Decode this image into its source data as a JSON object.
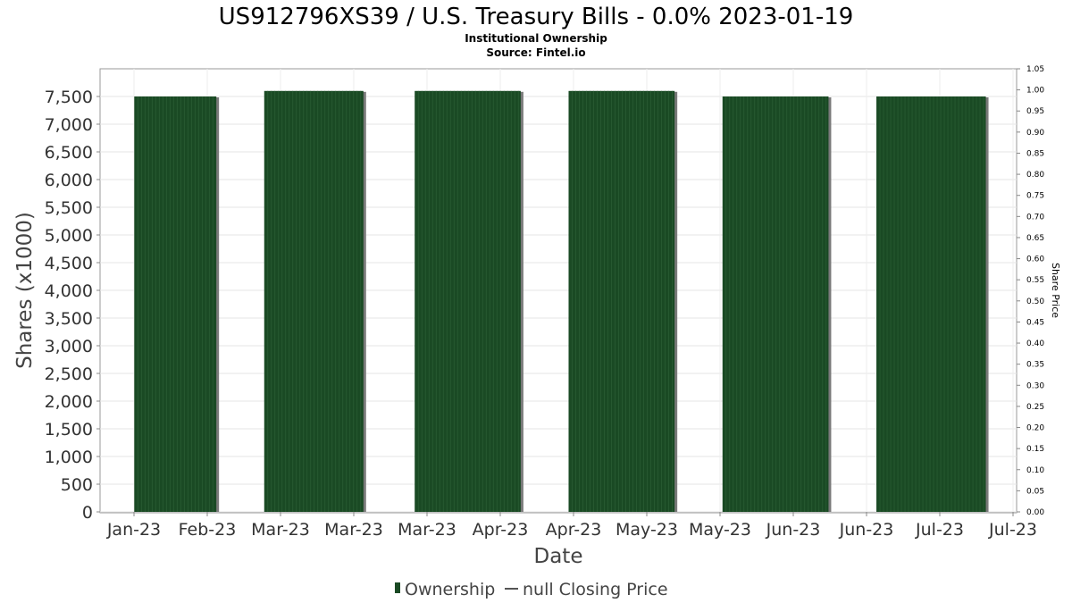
{
  "chart_data": {
    "type": "bar",
    "title": "US912796XS39 / U.S. Treasury Bills - 0.0% 2023-01-19",
    "subtitle_lines": [
      "Institutional Ownership",
      "Source: Fintel.io"
    ],
    "xlabel": "Date",
    "ylabel": "Shares (x1000)",
    "y2label": "Share Price",
    "x_tick_labels": [
      "Jan-23",
      "Feb-23",
      "Mar-23",
      "Mar-23",
      "Mar-23",
      "Apr-23",
      "Apr-23",
      "May-23",
      "May-23",
      "Jun-23",
      "Jun-23",
      "Jul-23",
      "Jul-23"
    ],
    "ylim": [
      0,
      8000
    ],
    "y_ticks": [
      0,
      500,
      1000,
      1500,
      2000,
      2500,
      3000,
      3500,
      4000,
      4500,
      5000,
      5500,
      6000,
      6500,
      7000,
      7500
    ],
    "y_tick_labels": [
      "0",
      "500",
      "1,000",
      "1,500",
      "2,000",
      "2,500",
      "3,000",
      "3,500",
      "4,000",
      "4,500",
      "5,000",
      "5,500",
      "6,000",
      "6,500",
      "7,000",
      "7,500"
    ],
    "y2lim": [
      0,
      1.05
    ],
    "y2_tick_labels": [
      "0.00",
      "0.05",
      "0.10",
      "0.15",
      "0.20",
      "0.25",
      "0.30",
      "0.35",
      "0.40",
      "0.45",
      "0.50",
      "0.55",
      "0.60",
      "0.65",
      "0.70",
      "0.75",
      "0.80",
      "0.85",
      "0.90",
      "0.95",
      "1.00",
      "1.05"
    ],
    "grid": true,
    "legend_position": "bottom",
    "series": [
      {
        "name": "Ownership",
        "color": "#1a4a24",
        "bars": [
          {
            "start": "2023-01-07",
            "end": "2023-01-31",
            "value": 7500
          },
          {
            "start": "2023-02-14",
            "end": "2023-03-15",
            "value": 7600
          },
          {
            "start": "2023-03-30",
            "end": "2023-04-30",
            "value": 7600
          },
          {
            "start": "2023-05-14",
            "end": "2023-06-14",
            "value": 7600
          },
          {
            "start": "2023-06-28",
            "end": "2023-07-29",
            "value": 7500
          },
          {
            "start": "2023-08-12",
            "end": "2023-09-13",
            "value": 7500
          }
        ]
      },
      {
        "name": "null Closing Price",
        "color": "#555555",
        "values": []
      }
    ]
  }
}
